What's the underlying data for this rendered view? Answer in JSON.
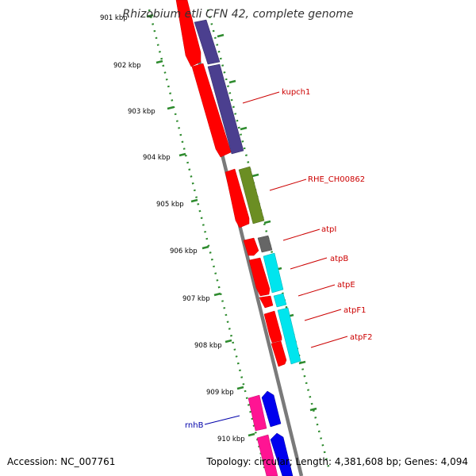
{
  "title": "Rhizobium etli CFN 42, complete genome",
  "footer": {
    "accession": "Accession: NC_007761",
    "summary": "Topology: circular; Length: 4,381,608 bp; Genes: 4,094"
  },
  "scale_labels": [
    "901 kbp",
    "902 kbp",
    "903 kbp",
    "904 kbp",
    "905 kbp",
    "906 kbp",
    "907 kbp",
    "908 kbp",
    "909 kbp",
    "910 kbp"
  ],
  "gene_labels": [
    {
      "text": "kupch1",
      "color": "#cc0000"
    },
    {
      "text": "RHE_CH00862",
      "color": "#cc0000"
    },
    {
      "text": "atpI",
      "color": "#cc0000"
    },
    {
      "text": "atpB",
      "color": "#cc0000"
    },
    {
      "text": "atpE",
      "color": "#cc0000"
    },
    {
      "text": "atpF1",
      "color": "#cc0000"
    },
    {
      "text": "atpF2",
      "color": "#cc0000"
    },
    {
      "text": "rnhB",
      "color": "#0000aa"
    }
  ],
  "colors": {
    "cds_forward": "#ff0000",
    "backbone": "#888888",
    "gc_dots": "#2e8b2e",
    "atp_cluster": "#00e5ee",
    "upstream_block": "#4b3f8f",
    "kupch_block": "#6b8e23",
    "grey_gene": "#666666",
    "magenta_gene": "#ff1493",
    "blue_gene": "#0000ee"
  },
  "icons": [
    "diagonal-genome-track"
  ]
}
